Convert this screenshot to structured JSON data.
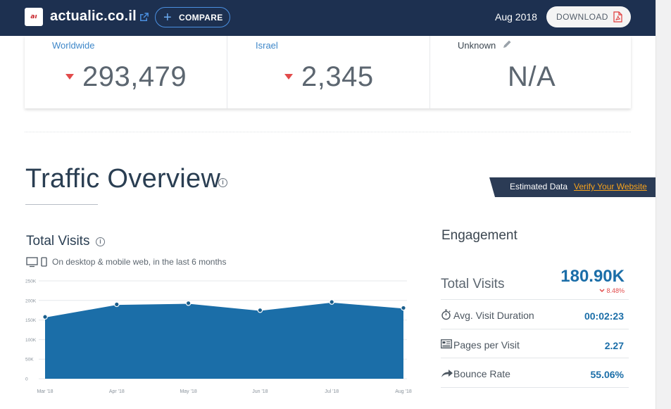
{
  "header": {
    "site_logo_text": "aı",
    "site_name": "actualic.co.il",
    "compare_label": "COMPARE",
    "date": "Aug 2018",
    "download_label": "DOWNLOAD"
  },
  "ranks": [
    {
      "label": "Worldwide",
      "value": "293,479"
    },
    {
      "label": "Israel",
      "value": "2,345"
    },
    {
      "label": "Unknown",
      "value": "N/A"
    }
  ],
  "traffic": {
    "title": "Traffic Overview",
    "info_glyph": "i",
    "estimated_label": "Estimated Data",
    "verify_label": "Verify Your Website"
  },
  "total_visits_chart": {
    "title": "Total Visits",
    "subtitle": "On desktop & mobile web, in the last 6 months"
  },
  "chart_data": {
    "type": "area",
    "categories": [
      "Mar '18",
      "Apr '18",
      "May '18",
      "Jun '18",
      "Jul '18",
      "Aug '18"
    ],
    "series": [
      {
        "values": [
          158000,
          190000,
          193000,
          175000,
          196000,
          180900
        ]
      }
    ],
    "y_ticks": [
      "0",
      "50K",
      "100K",
      "150K",
      "200K",
      "250K"
    ],
    "ylim": [
      0,
      250000
    ],
    "grid": true,
    "fill_color": "#1b6ea8",
    "point_color": "#1a5e8c"
  },
  "engagement": {
    "title": "Engagement",
    "total_visits_label": "Total Visits",
    "total_visits_value": "180.90K",
    "total_visits_change": "8.48%",
    "rows": [
      {
        "icon": "stopwatch-icon",
        "label": "Avg. Visit Duration",
        "value": "00:02:23"
      },
      {
        "icon": "pages-icon",
        "label": "Pages per Visit",
        "value": "2.27"
      },
      {
        "icon": "bounce-arrow-icon",
        "label": "Bounce Rate",
        "value": "55.06%"
      }
    ]
  },
  "colors": {
    "header_bg": "#1d3050",
    "accent_blue": "#1b6ea8",
    "decrease_red": "#e24b4b",
    "link_orange": "#f7a21b"
  }
}
